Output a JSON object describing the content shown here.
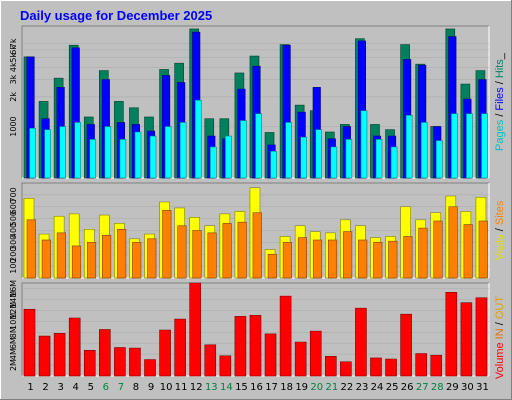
{
  "title": "Daily usage for December 2025",
  "colors": {
    "background": "#c0c0c0",
    "panel": "#c0c0c0",
    "hits": "#00805c",
    "files": "#0000ff",
    "pages": "#00ffff",
    "visits": "#ffff00",
    "sites": "#ff8000",
    "volume": "#ff0000",
    "in": "#ff8000",
    "out": "#ffc000",
    "weekday_label": "#000000",
    "weekend_label": "#008040"
  },
  "legends": {
    "top": [
      {
        "text": "Pages",
        "color": "#00c0c0"
      },
      {
        "text": " / ",
        "color": "#000000"
      },
      {
        "text": "Files",
        "color": "#0000ff"
      },
      {
        "text": " / ",
        "color": "#000000"
      },
      {
        "text": "Hits",
        "color": "#008060"
      },
      {
        "text": "_",
        "color": "#000000"
      }
    ],
    "middle": [
      {
        "text": "Visits",
        "color": "#e0e000"
      },
      {
        "text": " / ",
        "color": "#000000"
      },
      {
        "text": "Sites",
        "color": "#ff8000"
      }
    ],
    "bottom": [
      {
        "text": "Volume",
        "color": "#ff0000"
      },
      {
        "text": "  ",
        "color": "#000000"
      },
      {
        "text": "IN",
        "color": "#e07000"
      },
      {
        "text": " / ",
        "color": "#000000"
      },
      {
        "text": "OUT",
        "color": "#e0a000"
      }
    ]
  },
  "chart_data": {
    "type": "bar",
    "title": "Daily usage for December 2025",
    "categories": [
      1,
      2,
      3,
      4,
      5,
      6,
      7,
      8,
      9,
      10,
      11,
      12,
      13,
      14,
      15,
      16,
      17,
      18,
      19,
      20,
      21,
      22,
      23,
      24,
      25,
      26,
      27,
      28,
      29,
      30,
      31
    ],
    "weekend_days": [
      6,
      7,
      13,
      14,
      20,
      21,
      27,
      28
    ],
    "panels": [
      {
        "name": "pages-files-hits",
        "scale": "log",
        "ticks": [
          "1000",
          "2k",
          "3k",
          "4k",
          "5k",
          "6k",
          "7k"
        ],
        "series": [
          {
            "name": "Hits",
            "values": [
              5100,
              1800,
              3100,
              6700,
              1250,
              3700,
              1800,
              1550,
              1250,
              3800,
              4400,
              9800,
              1200,
              1200,
              3500,
              5200,
              870,
              6800,
              1650,
              1450,
              880,
              1050,
              7800,
              1050,
              930,
              6800,
              4300,
              1000,
              9800,
              2700,
              3700
            ]
          },
          {
            "name": "Files",
            "values": [
              5100,
              1200,
              2500,
              6300,
              1050,
              3000,
              1100,
              1050,
              900,
              3300,
              2800,
              9100,
              800,
              750,
              2400,
              4100,
              650,
              6700,
              1400,
              2500,
              750,
              1000,
              7400,
              800,
              800,
              4800,
              4200,
              1000,
              8200,
              1900,
              3000
            ]
          },
          {
            "name": "Pages",
            "values": [
              960,
              930,
              1000,
              1100,
              740,
              1000,
              740,
              880,
              800,
              1000,
              1100,
              1850,
              620,
              800,
              1150,
              1350,
              560,
              1100,
              780,
              930,
              620,
              740,
              1450,
              740,
              620,
              1300,
              1100,
              720,
              1350,
              1350,
              1350
            ]
          }
        ]
      },
      {
        "name": "visits-sites",
        "scale": "linear",
        "ticks": [
          "100",
          "200",
          "300",
          "400",
          "500",
          "600",
          "700"
        ],
        "max": 800,
        "series": [
          {
            "name": "Visits",
            "values": [
              670,
              370,
              520,
              540,
              410,
              530,
              460,
              330,
              370,
              640,
              590,
              510,
              440,
              540,
              560,
              760,
              240,
              350,
              440,
              390,
              380,
              490,
              440,
              340,
              350,
              600,
              490,
              550,
              690,
              560,
              680
            ]
          },
          {
            "name": "Sites",
            "values": [
              490,
              320,
              380,
              270,
              300,
              360,
              410,
              300,
              330,
              570,
              440,
              400,
              380,
              460,
              470,
              550,
              200,
              300,
              340,
              320,
              320,
              390,
              320,
              300,
              310,
              350,
              420,
              480,
              600,
              450,
              480
            ]
          }
        ]
      },
      {
        "name": "volume",
        "scale": "linear",
        "ticks": [
          "2M",
          "4M",
          "6M",
          "8M",
          "10M",
          "12M",
          "14M",
          "16M"
        ],
        "max": 17,
        "series": [
          {
            "name": "Volume",
            "values": [
              12.2,
              7.3,
              7.8,
              10.6,
              4.7,
              8.5,
              5.2,
              5.1,
              3.0,
              8.4,
              10.4,
              17.0,
              5.7,
              3.7,
              10.9,
              11.1,
              7.7,
              14.6,
              6.2,
              8.2,
              3.6,
              2.6,
              12.4,
              3.3,
              3.1,
              11.3,
              4.1,
              3.8,
              15.3,
              13.4,
              14.3
            ]
          }
        ]
      }
    ]
  }
}
